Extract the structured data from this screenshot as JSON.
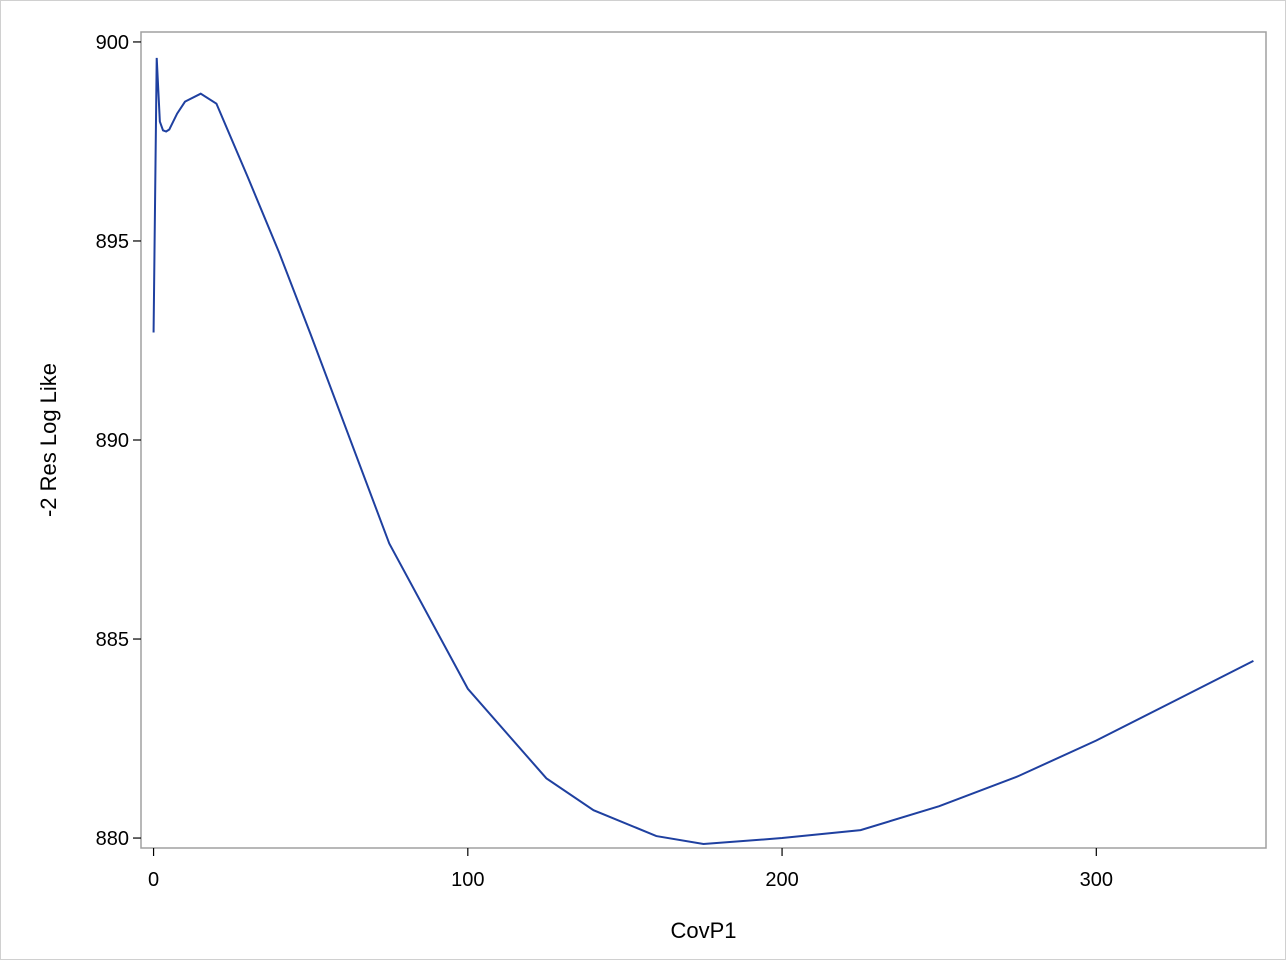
{
  "chart_data": {
    "type": "line",
    "title": "",
    "xlabel": "CovP1",
    "ylabel": "-2 Res Log Like",
    "xlim": [
      -4,
      354
    ],
    "ylim": [
      879.75,
      900.25
    ],
    "xticks": [
      0,
      100,
      200,
      300
    ],
    "yticks": [
      880,
      885,
      890,
      895,
      900
    ],
    "grid": false,
    "legend": "none",
    "line_color": "#1f40a0",
    "series": [
      {
        "x": [
          0.001,
          1,
          2,
          3,
          4,
          5,
          7.5,
          10,
          15,
          20,
          30,
          40,
          50,
          75,
          100,
          125,
          140,
          160,
          175,
          200,
          225,
          250,
          275,
          300,
          325,
          350
        ],
        "y": [
          892.7,
          899.6,
          898.0,
          897.78,
          897.75,
          897.8,
          898.2,
          898.5,
          898.7,
          898.45,
          896.6,
          894.7,
          892.65,
          887.4,
          883.75,
          881.5,
          880.7,
          880.05,
          879.85,
          880.0,
          880.2,
          880.8,
          881.55,
          882.45,
          883.45,
          884.45
        ]
      }
    ]
  }
}
